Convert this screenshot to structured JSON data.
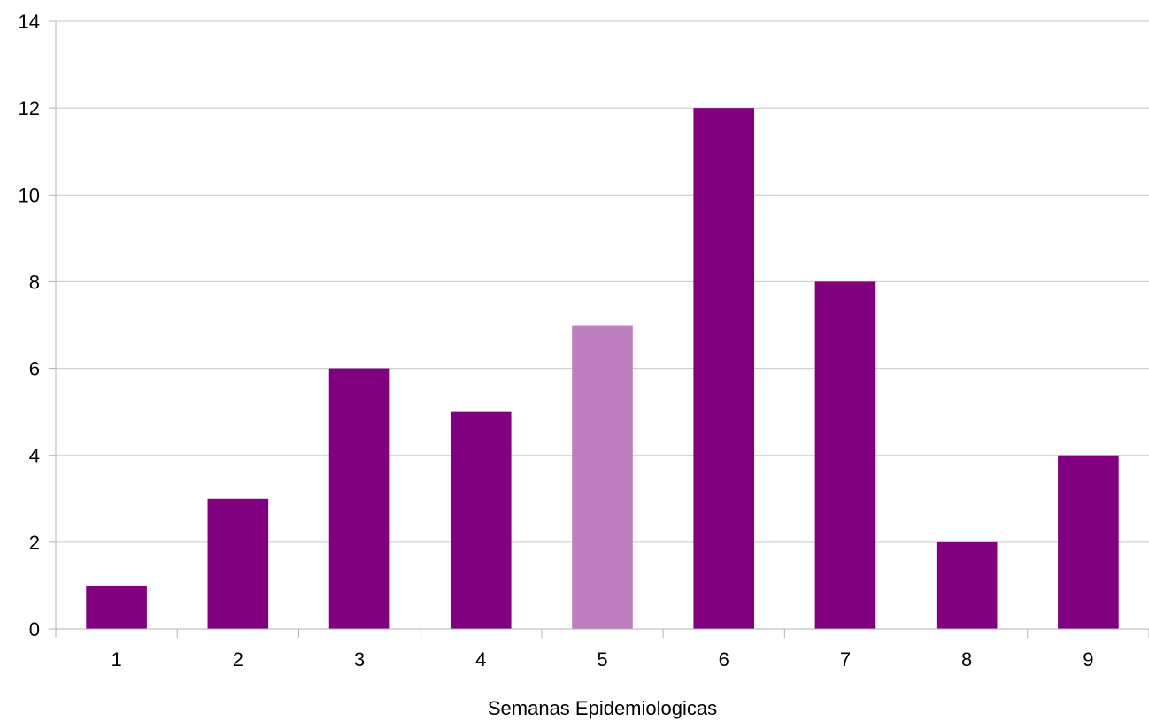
{
  "chart_data": {
    "type": "bar",
    "title": "",
    "xlabel": "Semanas Epidemiologicas",
    "ylabel": "",
    "categories": [
      "1",
      "2",
      "3",
      "4",
      "5",
      "6",
      "7",
      "8",
      "9"
    ],
    "values": [
      1,
      3,
      6,
      5,
      7,
      12,
      8,
      2,
      4
    ],
    "highlighted_category": "5",
    "ylim": [
      0,
      14
    ],
    "y_ticks": [
      0,
      2,
      4,
      6,
      8,
      10,
      12,
      14
    ],
    "grid": true,
    "legend": "none",
    "colors": {
      "bar": "#800080",
      "highlight_bar": "#bf7fbf"
    }
  }
}
